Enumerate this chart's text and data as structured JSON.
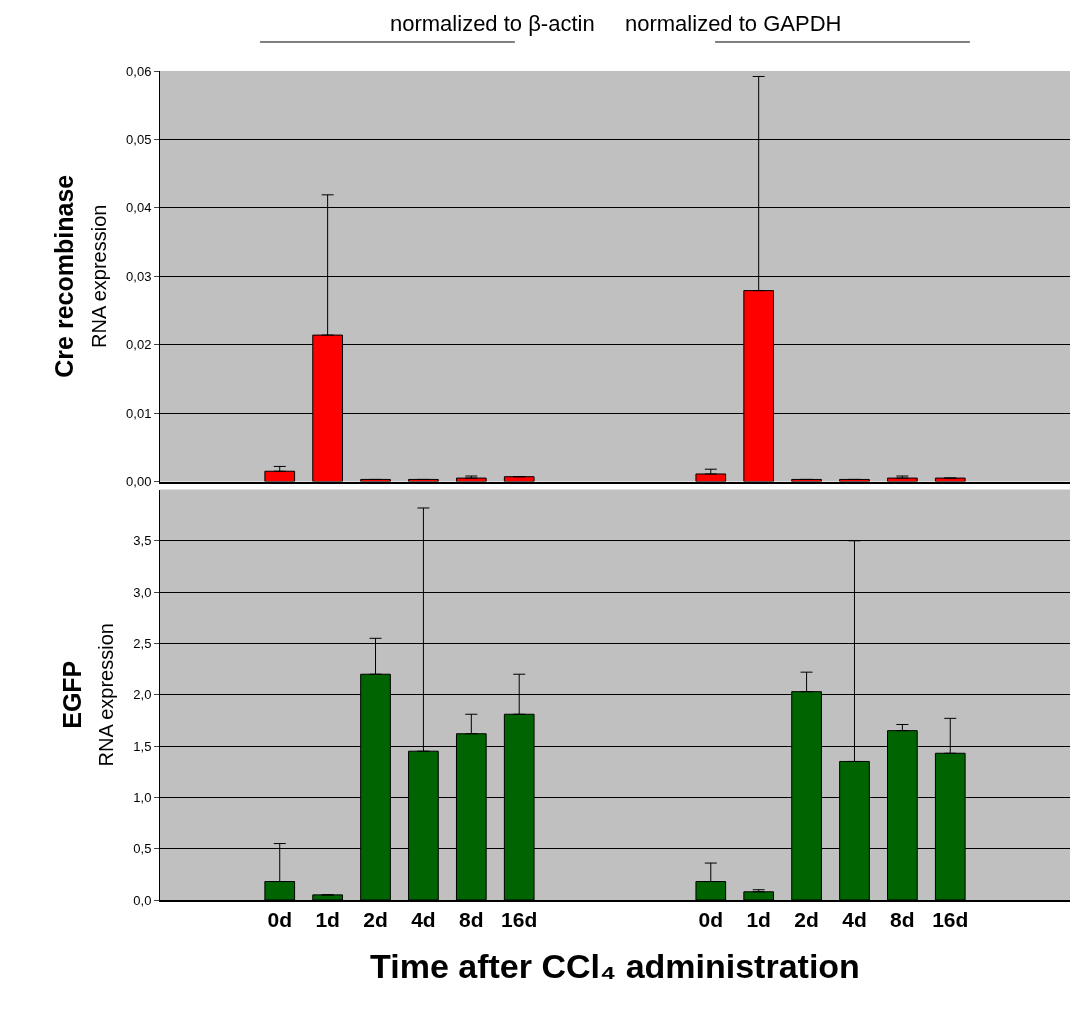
{
  "chart_data": [
    {
      "type": "bar",
      "ylabel": "Cre recombinase\nRNA expression",
      "annotations": [
        "normalized to β-actin",
        "normalized to GAPDH"
      ],
      "categories": [
        null,
        null,
        null,
        null,
        null,
        null,
        null,
        null,
        null,
        null,
        null,
        null,
        null,
        null,
        null,
        null,
        null,
        null,
        null
      ],
      "series": [
        {
          "color": "#ff0000",
          "values": [
            null,
            null,
            0.0015,
            0.0214,
            0.0003,
            0.0003,
            0.0005,
            0.0007,
            null,
            null,
            null,
            0.0011,
            0.0279,
            0.0003,
            0.0003,
            0.0005,
            0.0005,
            null,
            null
          ],
          "errors": [
            null,
            null,
            [
              0.0015,
              0.0022
            ],
            [
              0.0214,
              0.0419
            ],
            null,
            null,
            [
              0.0005,
              0.0008
            ],
            null,
            null,
            null,
            null,
            [
              0.0011,
              0.0018
            ],
            [
              0.0279,
              0.0592
            ],
            null,
            null,
            [
              0.0005,
              0.0008
            ],
            null,
            null,
            null
          ]
        }
      ],
      "ylim": [
        0,
        0.06
      ],
      "yticks": [
        {
          "value": 0,
          "label": "0,00"
        },
        {
          "value": 0.01,
          "label": "0,01"
        },
        {
          "value": 0.02,
          "label": "0,02"
        },
        {
          "value": 0.03,
          "label": "0,03"
        },
        {
          "value": 0.04,
          "label": "0,04"
        },
        {
          "value": 0.05,
          "label": "0,05"
        },
        {
          "value": 0.06,
          "label": "0,06"
        }
      ],
      "grid": "y",
      "tick_labels": "y"
    },
    {
      "type": "bar",
      "ylabel": "EGFP\nRNA expression",
      "xlabel": "Time after CCl₄ administration",
      "categories": [
        null,
        null,
        "0d",
        "1d",
        "2d",
        "4d",
        "8d",
        "16d",
        null,
        null,
        null,
        "0d",
        "1d",
        "2d",
        "4d",
        "8d",
        "16d",
        null,
        null
      ],
      "series": [
        {
          "color": "#006400",
          "values": [
            null,
            null,
            0.18,
            0.05,
            2.2,
            1.45,
            1.62,
            1.81,
            null,
            null,
            null,
            0.18,
            0.08,
            2.03,
            1.35,
            1.65,
            1.43,
            null,
            null
          ],
          "errors": [
            null,
            null,
            [
              0.18,
              0.55
            ],
            null,
            [
              2.2,
              2.55
            ],
            [
              1.45,
              3.82
            ],
            [
              1.62,
              1.81
            ],
            [
              1.81,
              2.2
            ],
            null,
            null,
            null,
            [
              0.18,
              0.36
            ],
            [
              0.08,
              0.1
            ],
            [
              2.03,
              2.22
            ],
            [
              1.35,
              3.5
            ],
            [
              1.65,
              1.71
            ],
            [
              1.43,
              1.77
            ],
            null,
            null
          ]
        }
      ],
      "ylim": [
        0,
        4.0
      ],
      "yticks": [
        {
          "value": 0,
          "label": "0,0"
        },
        {
          "value": 0.5,
          "label": "0,5"
        },
        {
          "value": 1,
          "label": "1,0"
        },
        {
          "value": 1.5,
          "label": "1,5"
        },
        {
          "value": 2,
          "label": "2,0"
        },
        {
          "value": 2.5,
          "label": "2,5"
        },
        {
          "value": 3,
          "label": "3,0"
        },
        {
          "value": 3.5,
          "label": "3,5"
        }
      ],
      "grid": "y"
    }
  ]
}
